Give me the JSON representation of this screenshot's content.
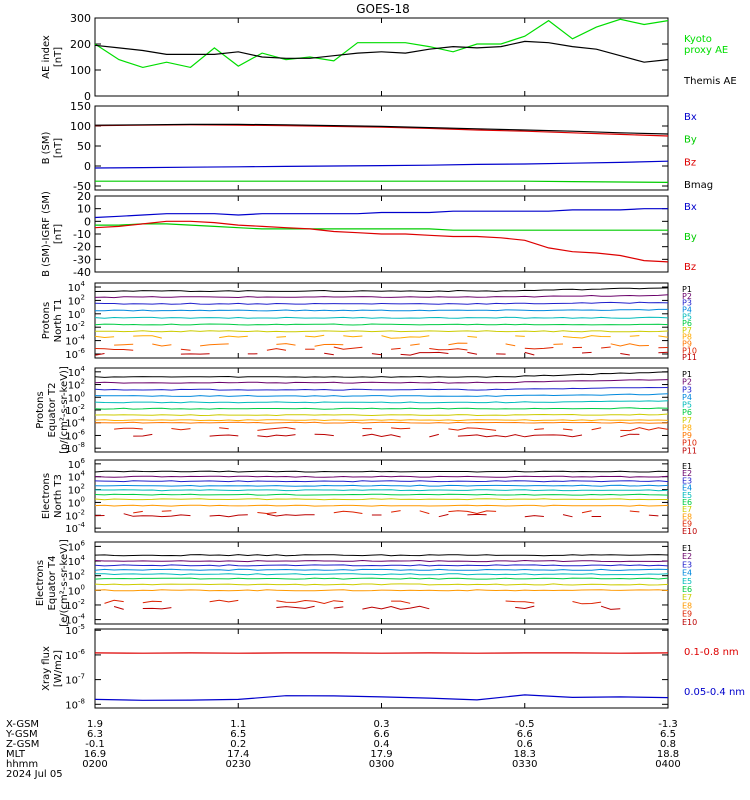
{
  "title": "GOES-18",
  "footer": {
    "rows": [
      {
        "label": "X-GSM",
        "values": [
          "1.9",
          "1.1",
          "0.3",
          "-0.5",
          "-1.3"
        ]
      },
      {
        "label": "Y-GSM",
        "values": [
          "6.3",
          "6.5",
          "6.6",
          "6.6",
          "6.5"
        ]
      },
      {
        "label": "Z-GSM",
        "values": [
          "-0.1",
          "0.2",
          "0.4",
          "0.6",
          "0.8"
        ]
      },
      {
        "label": "MLT",
        "values": [
          "16.9",
          "17.4",
          "17.9",
          "18.3",
          "18.8"
        ]
      },
      {
        "label": "hhmm",
        "values": [
          "0200",
          "0230",
          "0300",
          "0330",
          "0400"
        ]
      }
    ],
    "date": "2024 Jul 05"
  },
  "chart_data": [
    {
      "type": "line",
      "id": "ae",
      "ylabel": [
        "AE index",
        "[nT]"
      ],
      "ylim": [
        0,
        300
      ],
      "yticks": [
        "0",
        "100",
        "200",
        "300"
      ],
      "ytickvals": [
        0,
        100,
        200,
        300
      ],
      "x": [
        0,
        5,
        10,
        15,
        20,
        25,
        30,
        35,
        40,
        45,
        50,
        55,
        60,
        65,
        70,
        75,
        80,
        85,
        90,
        95,
        100,
        105,
        110,
        115,
        120
      ],
      "series": [
        {
          "name": "Kyoto proxy AE",
          "color": "#00dd00",
          "values": [
            200,
            140,
            110,
            130,
            110,
            185,
            115,
            165,
            140,
            150,
            135,
            205,
            205,
            205,
            190,
            170,
            200,
            200,
            230,
            290,
            220,
            265,
            295,
            275,
            290
          ]
        },
        {
          "name": "Themis AE",
          "color": "#000000",
          "values": [
            195,
            185,
            175,
            160,
            160,
            160,
            170,
            150,
            145,
            145,
            155,
            165,
            170,
            165,
            180,
            190,
            185,
            190,
            210,
            205,
            190,
            180,
            155,
            130,
            140
          ]
        }
      ],
      "legend": [
        {
          "text": "Kyoto",
          "color": "#00dd00"
        },
        {
          "text": "proxy AE",
          "color": "#00dd00"
        },
        {
          "text": "Themis AE",
          "color": "#000000"
        }
      ]
    },
    {
      "type": "line",
      "id": "bsm",
      "ylabel": [
        "B (SM)",
        "[nT]"
      ],
      "ylim": [
        -60,
        150
      ],
      "yticks": [
        "-50",
        "0",
        "50",
        "100",
        "150"
      ],
      "ytickvals": [
        -50,
        0,
        50,
        100,
        150
      ],
      "x": [
        0,
        10,
        20,
        30,
        40,
        50,
        60,
        70,
        80,
        90,
        100,
        110,
        120
      ],
      "series": [
        {
          "name": "Bx",
          "color": "#0000cc",
          "values": [
            -5,
            -4,
            -3,
            -2,
            -1,
            0,
            1,
            2,
            4,
            5,
            7,
            9,
            12
          ]
        },
        {
          "name": "By",
          "color": "#00cc00",
          "values": [
            -38,
            -38,
            -38,
            -38,
            -38,
            -38,
            -38,
            -38,
            -38,
            -38,
            -39,
            -40,
            -41
          ]
        },
        {
          "name": "Bz",
          "color": "#dd0000",
          "values": [
            101,
            102,
            103,
            102,
            101,
            99,
            97,
            94,
            90,
            87,
            83,
            79,
            75
          ]
        },
        {
          "name": "Bmag",
          "color": "#000000",
          "values": [
            102,
            103,
            104,
            104,
            103,
            101,
            99,
            96,
            93,
            90,
            87,
            83,
            80
          ]
        }
      ],
      "legend": [
        {
          "text": "Bx",
          "color": "#0000cc"
        },
        {
          "text": "By",
          "color": "#00cc00"
        },
        {
          "text": "Bz",
          "color": "#dd0000"
        },
        {
          "text": "Bmag",
          "color": "#000000"
        }
      ]
    },
    {
      "type": "line",
      "id": "bigrf",
      "ylabel": [
        "B (SM)-IGRF (SM)",
        "[nT]"
      ],
      "ylim": [
        -40,
        20
      ],
      "yticks": [
        "-40",
        "-30",
        "-20",
        "-10",
        "0",
        "10",
        "20"
      ],
      "ytickvals": [
        -40,
        -30,
        -20,
        -10,
        0,
        10,
        20
      ],
      "x": [
        0,
        5,
        10,
        15,
        20,
        25,
        30,
        35,
        40,
        45,
        50,
        55,
        60,
        65,
        70,
        75,
        80,
        85,
        90,
        95,
        100,
        105,
        110,
        115,
        120
      ],
      "series": [
        {
          "name": "Bx",
          "color": "#0000cc",
          "values": [
            3,
            4,
            5,
            6,
            6,
            6,
            5,
            6,
            6,
            6,
            6,
            6,
            7,
            7,
            7,
            8,
            8,
            8,
            8,
            8,
            9,
            9,
            9,
            10,
            10
          ]
        },
        {
          "name": "By",
          "color": "#00cc00",
          "values": [
            -3,
            -3,
            -2,
            -2,
            -3,
            -4,
            -5,
            -6,
            -6,
            -6,
            -6,
            -6,
            -6,
            -6,
            -6,
            -7,
            -7,
            -7,
            -7,
            -7,
            -7,
            -7,
            -7,
            -7,
            -7
          ]
        },
        {
          "name": "Bz",
          "color": "#dd0000",
          "values": [
            -5,
            -4,
            -2,
            0,
            0,
            -1,
            -3,
            -4,
            -5,
            -6,
            -8,
            -9,
            -10,
            -10,
            -11,
            -12,
            -12,
            -13,
            -15,
            -21,
            -24,
            -25,
            -27,
            -31,
            -32
          ]
        }
      ],
      "legend": [
        {
          "text": "Bx",
          "color": "#0000cc"
        },
        {
          "text": "By",
          "color": "#00cc00"
        },
        {
          "text": "Bz",
          "color": "#dd0000"
        }
      ]
    },
    {
      "type": "line",
      "id": "pnorth",
      "log": true,
      "ylabel": [
        "Protons",
        "North T1"
      ],
      "ylim": [
        -6.6,
        4.6
      ],
      "ytickexp": [
        -6,
        -4,
        -2,
        0,
        2,
        4
      ],
      "levels": [
        {
          "name": "P1",
          "color": "#000000",
          "v": 3.4,
          "rise": 0.5
        },
        {
          "name": "P2",
          "color": "#6a006a",
          "v": 2.5,
          "rise": 0.3
        },
        {
          "name": "P3",
          "color": "#2020cc",
          "v": 1.5,
          "rise": 0.2
        },
        {
          "name": "P4",
          "color": "#0088dd",
          "v": 0.5,
          "rise": 0.1
        },
        {
          "name": "P5",
          "color": "#00bbbb",
          "v": -0.6,
          "rise": 0
        },
        {
          "name": "P6",
          "color": "#00cc44",
          "v": -1.6,
          "rise": 0
        },
        {
          "name": "P7",
          "color": "#cccc00",
          "v": -2.6,
          "rise": 0
        },
        {
          "name": "P8",
          "color": "#ffaa00",
          "v": -3.4,
          "rise": 0
        },
        {
          "name": "P9",
          "color": "#ff7700",
          "v": -4.6,
          "rise": 0
        },
        {
          "name": "P10",
          "color": "#dd2200",
          "v": -5.2,
          "rise": 0
        },
        {
          "name": "P11",
          "color": "#bb0000",
          "v": -6.0,
          "rise": 0
        }
      ]
    },
    {
      "type": "line",
      "id": "pequator",
      "log": true,
      "ylabel": [
        "Protons",
        "Equator T2",
        "[p/(cm²-s-sr-keV)]"
      ],
      "ylim": [
        -8.6,
        4.6
      ],
      "ytickexp": [
        -8,
        -6,
        -4,
        -2,
        0,
        2,
        4
      ],
      "levels": [
        {
          "name": "P1",
          "color": "#000000",
          "v": 3.2,
          "rise": 0.8
        },
        {
          "name": "P2",
          "color": "#6a006a",
          "v": 2.3,
          "rise": 0.5
        },
        {
          "name": "P3",
          "color": "#2020cc",
          "v": 1.2,
          "rise": 0.4
        },
        {
          "name": "P4",
          "color": "#0088dd",
          "v": 0.2,
          "rise": 0.3
        },
        {
          "name": "P5",
          "color": "#00bbbb",
          "v": -0.8,
          "rise": 0.2
        },
        {
          "name": "P6",
          "color": "#00cc44",
          "v": -1.8,
          "rise": 0.1
        },
        {
          "name": "P7",
          "color": "#cccc00",
          "v": -2.8,
          "rise": 0.1
        },
        {
          "name": "P8",
          "color": "#ffaa00",
          "v": -3.6,
          "rise": 0
        },
        {
          "name": "P9",
          "color": "#ff7700",
          "v": -4.0,
          "rise": 0
        },
        {
          "name": "P10",
          "color": "#dd2200",
          "v": -5.0,
          "rise": 0
        },
        {
          "name": "P11",
          "color": "#bb0000",
          "v": -6.0,
          "rise": 0
        }
      ]
    },
    {
      "type": "line",
      "id": "enorth",
      "log": true,
      "ylabel": [
        "Electrons",
        "North T3"
      ],
      "ylim": [
        -4.6,
        6.6
      ],
      "ytickexp": [
        -4,
        -2,
        0,
        2,
        4,
        6
      ],
      "levels": [
        {
          "name": "E1",
          "color": "#000000",
          "v": 4.8,
          "rise": 0
        },
        {
          "name": "E2",
          "color": "#6a006a",
          "v": 4.0,
          "rise": 0
        },
        {
          "name": "E3",
          "color": "#2020cc",
          "v": 3.3,
          "rise": 0
        },
        {
          "name": "E4",
          "color": "#0088dd",
          "v": 2.6,
          "rise": 0
        },
        {
          "name": "E5",
          "color": "#00bbbb",
          "v": 1.9,
          "rise": 0
        },
        {
          "name": "E6",
          "color": "#00cc44",
          "v": 1.2,
          "rise": 0
        },
        {
          "name": "E7",
          "color": "#cccc00",
          "v": 0.5,
          "rise": 0
        },
        {
          "name": "E8",
          "color": "#ff9900",
          "v": -0.5,
          "rise": 0
        },
        {
          "name": "E9",
          "color": "#dd2200",
          "v": -1.5,
          "rise": 0
        },
        {
          "name": "E10",
          "color": "#bb0000",
          "v": -2.0,
          "rise": 0
        }
      ]
    },
    {
      "type": "line",
      "id": "eequator",
      "log": true,
      "ylabel": [
        "Electrons",
        "Equator T4",
        "[e/(cm²-s-sr-keV)]"
      ],
      "ylim": [
        -4.6,
        6.6
      ],
      "ytickexp": [
        -4,
        -2,
        0,
        2,
        4,
        6
      ],
      "levels": [
        {
          "name": "E1",
          "color": "#000000",
          "v": 4.8,
          "rise": 0
        },
        {
          "name": "E2",
          "color": "#6a006a",
          "v": 4.0,
          "rise": 0
        },
        {
          "name": "E3",
          "color": "#2020cc",
          "v": 3.4,
          "rise": 0
        },
        {
          "name": "E4",
          "color": "#0088dd",
          "v": 2.8,
          "rise": 0
        },
        {
          "name": "E5",
          "color": "#00bbbb",
          "v": 2.2,
          "rise": 0
        },
        {
          "name": "E6",
          "color": "#00cc44",
          "v": 1.6,
          "rise": 0
        },
        {
          "name": "E7",
          "color": "#cccc00",
          "v": 0.8,
          "rise": 0
        },
        {
          "name": "E8",
          "color": "#ff9900",
          "v": 0.0,
          "rise": 0
        },
        {
          "name": "E9",
          "color": "#dd2200",
          "v": -1.6,
          "rise": 0
        },
        {
          "name": "E10",
          "color": "#bb0000",
          "v": -2.4,
          "rise": 0
        }
      ]
    },
    {
      "type": "line",
      "id": "xray",
      "log": true,
      "ylabel": [
        "Xray  flux",
        "[W/m2]"
      ],
      "ylim": [
        -8.15,
        -4.95
      ],
      "ytickexp": [
        -8,
        -7,
        -6,
        -5
      ],
      "x": [
        0,
        10,
        20,
        30,
        40,
        50,
        60,
        70,
        80,
        90,
        100,
        110,
        120
      ],
      "series": [
        {
          "name": "0.1-0.8 nm",
          "color": "#dd0000",
          "values": [
            -5.92,
            -5.93,
            -5.92,
            -5.93,
            -5.92,
            -5.92,
            -5.93,
            -5.92,
            -5.93,
            -5.92,
            -5.92,
            -5.93,
            -5.92
          ]
        },
        {
          "name": "0.05-0.4 nm",
          "color": "#0000cc",
          "values": [
            -7.8,
            -7.84,
            -7.83,
            -7.8,
            -7.65,
            -7.66,
            -7.7,
            -7.75,
            -7.82,
            -7.62,
            -7.72,
            -7.7,
            -7.73
          ]
        }
      ],
      "legend": [
        {
          "text": "0.1-0.8 nm",
          "color": "#dd0000"
        },
        {
          "text": "0.05-0.4 nm",
          "color": "#0000cc"
        }
      ]
    }
  ]
}
